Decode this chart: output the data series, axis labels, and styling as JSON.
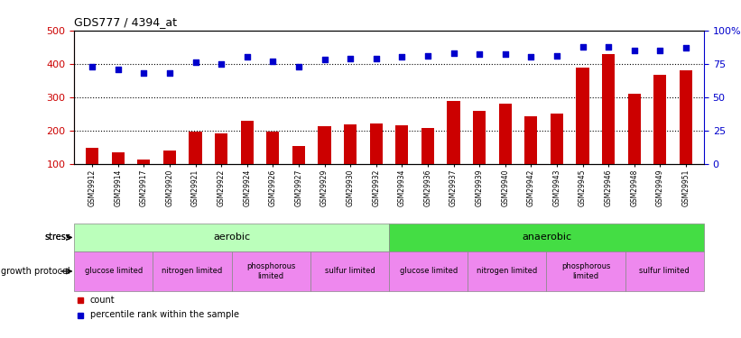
{
  "title": "GDS777 / 4394_at",
  "samples": [
    "GSM29912",
    "GSM29914",
    "GSM29917",
    "GSM29920",
    "GSM29921",
    "GSM29922",
    "GSM29924",
    "GSM29926",
    "GSM29927",
    "GSM29929",
    "GSM29930",
    "GSM29932",
    "GSM29934",
    "GSM29936",
    "GSM29937",
    "GSM29939",
    "GSM29940",
    "GSM29942",
    "GSM29943",
    "GSM29945",
    "GSM29946",
    "GSM29948",
    "GSM29949",
    "GSM29951"
  ],
  "counts": [
    148,
    135,
    112,
    140,
    197,
    192,
    228,
    196,
    155,
    213,
    218,
    220,
    215,
    207,
    289,
    258,
    280,
    244,
    250,
    388,
    430,
    310,
    368,
    380
  ],
  "percentiles": [
    73,
    71,
    68,
    68,
    76,
    75,
    80,
    77,
    73,
    78,
    79,
    79,
    80,
    81,
    83,
    82,
    82,
    80,
    81,
    88,
    88,
    85,
    85,
    87
  ],
  "ylim_left": [
    100,
    500
  ],
  "ylim_right": [
    0,
    100
  ],
  "yticks_left": [
    100,
    200,
    300,
    400,
    500
  ],
  "yticks_right": [
    0,
    25,
    50,
    75,
    100
  ],
  "bar_color": "#cc0000",
  "dot_color": "#0000cc",
  "background_color": "#ffffff",
  "stress_labels": [
    {
      "label": "aerobic",
      "start": 0,
      "end": 12,
      "color": "#bbffbb"
    },
    {
      "label": "anaerobic",
      "start": 12,
      "end": 24,
      "color": "#44dd44"
    }
  ],
  "growth_labels": [
    {
      "label": "glucose limited",
      "start": 0,
      "end": 3,
      "color": "#ee88ee"
    },
    {
      "label": "nitrogen limited",
      "start": 3,
      "end": 6,
      "color": "#ee88ee"
    },
    {
      "label": "phosphorous\nlimited",
      "start": 6,
      "end": 9,
      "color": "#ee88ee"
    },
    {
      "label": "sulfur limited",
      "start": 9,
      "end": 12,
      "color": "#ee88ee"
    },
    {
      "label": "glucose limited",
      "start": 12,
      "end": 15,
      "color": "#ee88ee"
    },
    {
      "label": "nitrogen limited",
      "start": 15,
      "end": 18,
      "color": "#ee88ee"
    },
    {
      "label": "phosphorous\nlimited",
      "start": 18,
      "end": 21,
      "color": "#ee88ee"
    },
    {
      "label": "sulfur limited",
      "start": 21,
      "end": 24,
      "color": "#ee88ee"
    }
  ],
  "stress_label": "stress",
  "growth_label": "growth protocol",
  "legend_count": "count",
  "legend_percentile": "percentile rank within the sample",
  "hgrid_values": [
    200,
    300,
    400
  ]
}
